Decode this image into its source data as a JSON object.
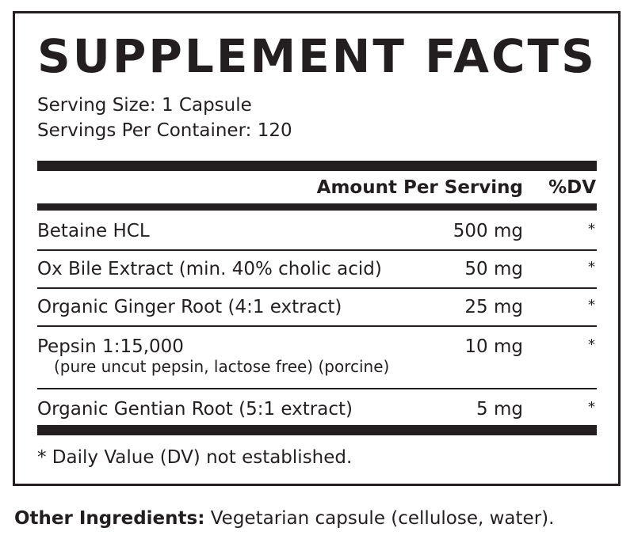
{
  "header": {
    "title": "SUPPLEMENT FACTS"
  },
  "serving": {
    "size": "Serving Size: 1 Capsule",
    "servings": "Servings Per Container: 120"
  },
  "table": {
    "columns": [
      "Amount Per Serving",
      "%DV"
    ],
    "rows": [
      {
        "name": "Betaine HCL",
        "amount": "500 mg",
        "dv": "*"
      },
      {
        "name": "Ox Bile Extract (min. 40% cholic acid)",
        "amount": "50 mg",
        "dv": "*"
      },
      {
        "name": "Organic Ginger Root (4:1 extract)",
        "amount": "25 mg",
        "dv": "*"
      },
      {
        "name": "Pepsin 1:15,000",
        "subname": "(pure uncut pepsin, lactose free) (porcine)",
        "amount": "10 mg",
        "dv": "*"
      },
      {
        "name": "Organic Gentian Root (5:1 extract)",
        "amount": "5 mg",
        "dv": "*"
      }
    ]
  },
  "footnote": "* Daily Value (DV) not established.",
  "other_ingredients": {
    "label": "Other Ingredients:",
    "text": "Vegetarian capsule (cellulose, water)."
  }
}
